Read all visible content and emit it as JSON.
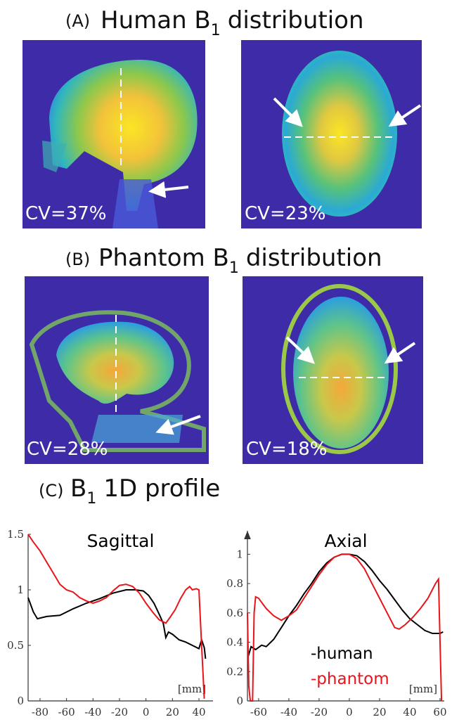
{
  "panels": [
    {
      "label": "(A)",
      "title": "Human B",
      "title_sub": "1",
      "title_rest": "distribution",
      "images": [
        {
          "cv": "CV=37%"
        },
        {
          "cv": "CV=23%"
        }
      ]
    },
    {
      "label": "(B)",
      "title": "Phantom B",
      "title_sub": "1",
      "title_rest": "distribution",
      "images": [
        {
          "cv": "CV=28%"
        },
        {
          "cv": "CV=18%"
        }
      ]
    },
    {
      "label": "(C)",
      "title": "B",
      "title_sub": "1",
      "title_rest": "1D profile"
    }
  ],
  "chart_data": [
    {
      "type": "line",
      "title": "Sagittal",
      "x_unit": "[mm]",
      "xlim": [
        -89,
        50.6
      ],
      "ylim": [
        0,
        1.5
      ],
      "xticks": [
        -80,
        -60,
        -40,
        -20,
        0,
        20,
        40
      ],
      "yticks": [
        0,
        0.5,
        1,
        1.5
      ],
      "legend": false,
      "axis_arrow": false,
      "series": [
        {
          "name": "-human",
          "color": "#000000",
          "x": [
            -89,
            -85,
            -82,
            -75,
            -65,
            -55,
            -45,
            -35,
            -25,
            -15,
            -8,
            -2,
            2,
            6,
            10,
            13,
            15,
            17,
            20,
            25,
            30,
            35,
            40,
            42,
            44,
            45
          ],
          "values": [
            0.93,
            0.8,
            0.74,
            0.76,
            0.77,
            0.83,
            0.88,
            0.92,
            0.97,
            1.0,
            1.0,
            0.99,
            0.95,
            0.88,
            0.78,
            0.7,
            0.57,
            0.62,
            0.6,
            0.55,
            0.53,
            0.5,
            0.47,
            0.55,
            0.48,
            0.38
          ]
        },
        {
          "name": "-phantom",
          "color": "#e8141a",
          "x": [
            -89,
            -85,
            -80,
            -75,
            -70,
            -65,
            -60,
            -55,
            -50,
            -45,
            -40,
            -35,
            -30,
            -25,
            -20,
            -15,
            -10,
            -5,
            0,
            5,
            10,
            15,
            18,
            22,
            26,
            30,
            33,
            35,
            38,
            40,
            42,
            44
          ],
          "values": [
            1.5,
            1.43,
            1.35,
            1.25,
            1.15,
            1.05,
            1.0,
            0.98,
            0.93,
            0.9,
            0.88,
            0.9,
            0.93,
            0.99,
            1.04,
            1.05,
            1.03,
            0.97,
            0.88,
            0.8,
            0.73,
            0.7,
            0.75,
            0.82,
            0.92,
            1.0,
            1.03,
            1.0,
            1.01,
            1.0,
            0.5,
            0.02
          ]
        }
      ]
    },
    {
      "type": "line",
      "title": "Axial",
      "x_unit": "[mm]",
      "xlim": [
        -67.4,
        62.8
      ],
      "ylim": [
        0,
        1.16
      ],
      "xticks": [
        -60,
        -40,
        -20,
        0,
        20,
        40,
        60
      ],
      "yticks": [
        0,
        0.2,
        0.4,
        0.6,
        0.8,
        1
      ],
      "legend": "lower right",
      "axis_arrow": true,
      "series": [
        {
          "name": "-human",
          "color": "#000000",
          "x": [
            -67,
            -65,
            -62,
            -58,
            -55,
            -50,
            -45,
            -40,
            -35,
            -30,
            -25,
            -20,
            -15,
            -10,
            -5,
            0,
            5,
            10,
            15,
            20,
            25,
            30,
            35,
            40,
            45,
            50,
            55,
            60,
            62
          ],
          "values": [
            0.3,
            0.37,
            0.35,
            0.38,
            0.37,
            0.42,
            0.5,
            0.58,
            0.65,
            0.73,
            0.8,
            0.88,
            0.94,
            0.98,
            1.0,
            1.0,
            0.99,
            0.95,
            0.89,
            0.82,
            0.76,
            0.69,
            0.62,
            0.56,
            0.52,
            0.48,
            0.46,
            0.46,
            0.47
          ]
        },
        {
          "name": "-phantom",
          "color": "#e8141a",
          "x": [
            -67.4,
            -66.5,
            -65.5,
            -64,
            -63,
            -62,
            -60,
            -55,
            -50,
            -45,
            -40,
            -35,
            -30,
            -25,
            -20,
            -15,
            -10,
            -5,
            0,
            5,
            10,
            15,
            20,
            25,
            30,
            33,
            37,
            42,
            47,
            52,
            57,
            59,
            60,
            61
          ],
          "values": [
            0.6,
            0.1,
            0,
            0,
            0.6,
            0.71,
            0.7,
            0.63,
            0.58,
            0.55,
            0.58,
            0.62,
            0.7,
            0.78,
            0.86,
            0.93,
            0.98,
            1.0,
            1.0,
            0.97,
            0.9,
            0.8,
            0.7,
            0.6,
            0.5,
            0.49,
            0.52,
            0.57,
            0.63,
            0.7,
            0.8,
            0.83,
            0.4,
            0
          ]
        }
      ]
    }
  ]
}
